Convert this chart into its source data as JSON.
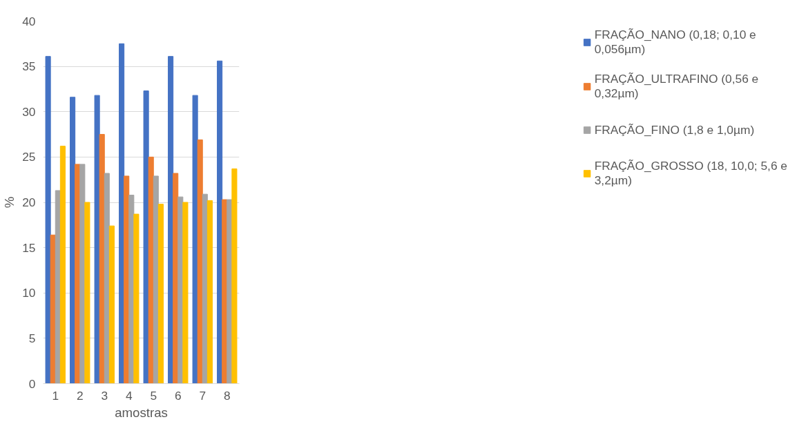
{
  "chart_data": {
    "type": "bar",
    "xlabel": "amostras",
    "ylabel": "%",
    "categories": [
      "1",
      "2",
      "3",
      "4",
      "5",
      "6",
      "7",
      "8"
    ],
    "series": [
      {
        "name": "FRAÇÃO_NANO (0,18; 0,10 e 0,056µm)",
        "color": "#4472c4",
        "values": [
          36.1,
          31.6,
          31.8,
          37.5,
          32.3,
          36.1,
          31.8,
          35.6
        ]
      },
      {
        "name": "FRAÇÃO_ULTRAFINO (0,56 e 0,32µm)",
        "color": "#ed7d31",
        "values": [
          16.4,
          24.2,
          27.5,
          22.9,
          25.0,
          23.2,
          26.9,
          20.3
        ]
      },
      {
        "name": "FRAÇÃO_FINO (1,8 e 1,0µm)",
        "color": "#a5a5a5",
        "values": [
          21.3,
          24.2,
          23.2,
          20.8,
          22.9,
          20.6,
          20.9,
          20.3
        ]
      },
      {
        "name": "FRAÇÃO_GROSSO (18, 10,0; 5,6 e 3,2µm)",
        "color": "#ffc000",
        "values": [
          26.2,
          20.0,
          17.4,
          18.7,
          19.8,
          20.0,
          20.2,
          23.7
        ]
      }
    ],
    "ylim": [
      0,
      40
    ],
    "yticks": [
      0,
      5,
      10,
      15,
      20,
      25,
      30,
      35,
      40
    ],
    "grid": "y",
    "legend": "right"
  }
}
